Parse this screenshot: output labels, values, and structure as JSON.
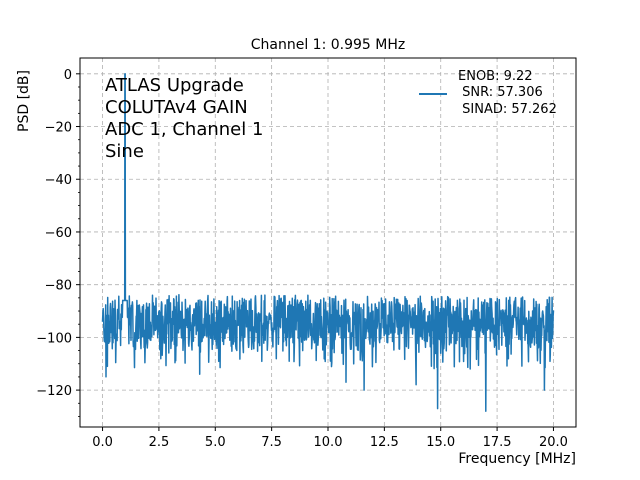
{
  "chart_data": {
    "type": "line",
    "title": "Channel 1: 0.995 MHz",
    "xlabel": "Frequency [MHz]",
    "ylabel": "PSD [dB]",
    "xlim": [
      -1.0,
      21.0
    ],
    "ylim": [
      -134,
      6
    ],
    "xticks": [
      0.0,
      2.5,
      5.0,
      7.5,
      10.0,
      12.5,
      15.0,
      17.5,
      20.0
    ],
    "xtick_labels": [
      "0.0",
      "2.5",
      "5.0",
      "7.5",
      "10.0",
      "12.5",
      "15.0",
      "17.5",
      "20.0"
    ],
    "yticks": [
      0,
      -20,
      -40,
      -60,
      -80,
      -100,
      -120
    ],
    "ytick_labels": [
      "0",
      "−20",
      "−40",
      "−60",
      "−80",
      "−100",
      "−120"
    ],
    "grid": true,
    "legend_position": "top-right",
    "annotation": [
      "ATLAS Upgrade",
      "COLUTAv4 GAIN",
      "ADC 1, Channel 1",
      "Sine"
    ],
    "legend_lines": [
      "ENOB: 9.22",
      " SNR: 57.306",
      " SINAD: 57.262"
    ],
    "series": [
      {
        "color": "#1f77b4",
        "x_start": 0.0,
        "x_end": 20.0,
        "noise_floor": -95,
        "noise_range": [
          -112,
          -84
        ],
        "deep_dips": [
          {
            "x": 0.15,
            "y": -115
          },
          {
            "x": 4.3,
            "y": -114
          },
          {
            "x": 10.8,
            "y": -117
          },
          {
            "x": 11.6,
            "y": -120
          },
          {
            "x": 14.85,
            "y": -127
          },
          {
            "x": 17.0,
            "y": -128
          },
          {
            "x": 13.9,
            "y": -118
          },
          {
            "x": 19.6,
            "y": -120
          }
        ],
        "peak": {
          "x": 0.995,
          "y": 0
        }
      }
    ]
  }
}
